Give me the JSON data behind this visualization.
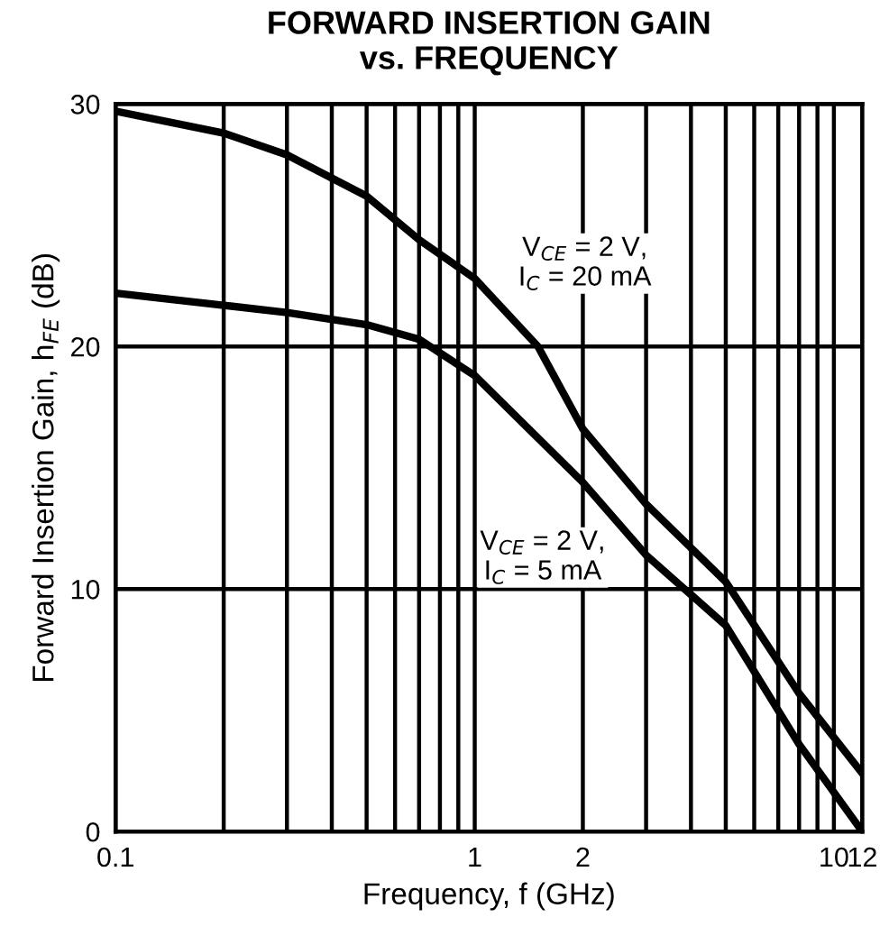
{
  "chart_data": {
    "type": "line",
    "title": "FORWARD INSERTION GAIN\nvs. FREQUENCY",
    "xlabel": "Frequency, f (GHz)",
    "ylabel": "Forward Insertion Gain, h$_{FE}$ (dB)",
    "log": "x",
    "grid": true,
    "legend": false,
    "marker": "none",
    "line_style": "solid",
    "xlim": [
      0.1,
      12
    ],
    "ylim": [
      0,
      30
    ],
    "xticks": [
      0.1,
      {
        "value": 0.2,
        "label": null
      },
      {
        "value": 0.3,
        "label": null
      },
      {
        "value": 0.4,
        "label": null
      },
      {
        "value": 0.5,
        "label": null
      },
      {
        "value": 0.6,
        "label": null
      },
      {
        "value": 0.7,
        "label": null
      },
      {
        "value": 0.8,
        "label": null
      },
      {
        "value": 0.9,
        "label": null
      },
      1,
      2,
      {
        "value": 3,
        "label": null
      },
      {
        "value": 4,
        "label": null
      },
      {
        "value": 5,
        "label": null
      },
      {
        "value": 6,
        "label": null
      },
      {
        "value": 7,
        "label": null
      },
      {
        "value": 8,
        "label": null
      },
      {
        "value": 9,
        "label": null
      },
      10,
      12
    ],
    "yticks": [
      0,
      10,
      20,
      30
    ],
    "series": [
      {
        "name": "V$_{CE}$ = 2 V,\nI$_{C}$ = 20 mA",
        "color": "#000000",
        "x": [
          0.1,
          0.2,
          0.3,
          0.5,
          0.7,
          1,
          1.5,
          2,
          3,
          5,
          8,
          12
        ],
        "values": [
          29.7,
          28.8,
          27.9,
          26.2,
          24.4,
          22.8,
          20.0,
          16.6,
          13.5,
          10.3,
          5.7,
          2.4
        ]
      },
      {
        "name": "V$_{CE}$ = 2 V,\nI$_{C}$ = 5 mA",
        "color": "#000000",
        "x": [
          0.1,
          0.2,
          0.3,
          0.5,
          0.7,
          1,
          2,
          3,
          5,
          8,
          12
        ],
        "values": [
          22.2,
          21.7,
          21.4,
          20.9,
          20.3,
          18.8,
          14.4,
          11.4,
          8.5,
          3.6,
          0.0
        ]
      }
    ]
  }
}
